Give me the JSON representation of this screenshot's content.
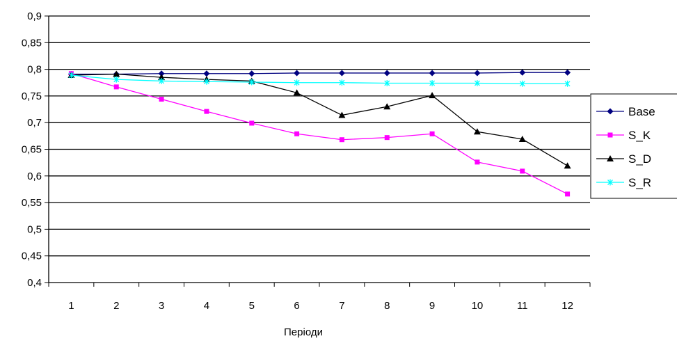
{
  "chart_data": {
    "type": "line",
    "title": "",
    "xlabel": "Періоди",
    "ylabel": "",
    "categories": [
      "1",
      "2",
      "3",
      "4",
      "5",
      "6",
      "7",
      "8",
      "9",
      "10",
      "11",
      "12"
    ],
    "ylim": [
      0.4,
      0.9
    ],
    "ytick_labels": [
      "0,4",
      "0,45",
      "0,5",
      "0,55",
      "0,6",
      "0,65",
      "0,7",
      "0,75",
      "0,8",
      "0,85",
      "0,9"
    ],
    "grid": true,
    "legend_position": "right",
    "series": [
      {
        "name": "Base",
        "color": "#000080",
        "marker": "diamond",
        "values": [
          0.791,
          0.791,
          0.792,
          0.792,
          0.792,
          0.793,
          0.793,
          0.793,
          0.793,
          0.793,
          0.794,
          0.794
        ]
      },
      {
        "name": "S_K",
        "color": "#ff00ff",
        "marker": "square",
        "values": [
          0.792,
          0.767,
          0.744,
          0.721,
          0.699,
          0.679,
          0.668,
          0.672,
          0.679,
          0.626,
          0.609,
          0.566
        ]
      },
      {
        "name": "S_D",
        "color": "#000000",
        "marker": "triangle",
        "values": [
          0.789,
          0.791,
          0.785,
          0.781,
          0.778,
          0.756,
          0.714,
          0.73,
          0.751,
          0.683,
          0.669,
          0.619
        ]
      },
      {
        "name": "S_R",
        "color": "#00ffff",
        "marker": "star",
        "values": [
          0.789,
          0.781,
          0.778,
          0.777,
          0.776,
          0.775,
          0.775,
          0.774,
          0.774,
          0.774,
          0.773,
          0.773
        ]
      }
    ]
  }
}
